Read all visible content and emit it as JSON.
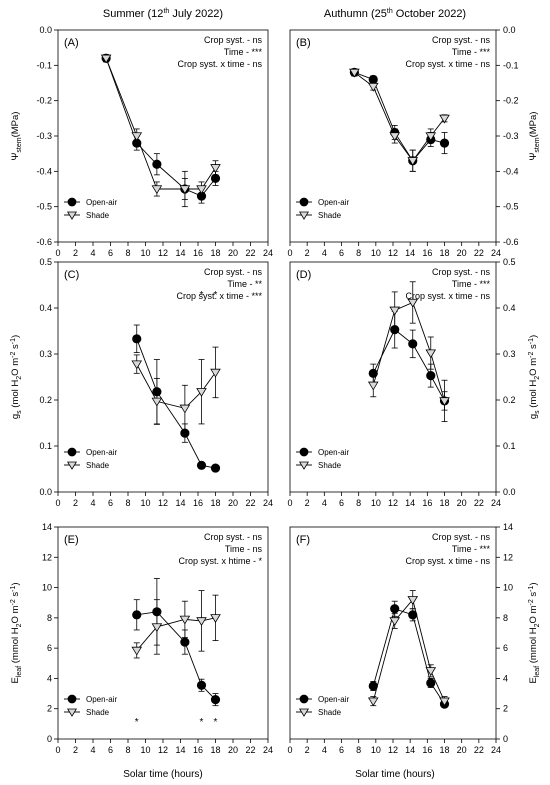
{
  "columns": [
    {
      "title_main": "Summer (12",
      "title_sup": "th",
      "title_end": " July 2022)"
    },
    {
      "title_main": "Authumn (25",
      "title_sup": "th",
      "title_end": " October 2022)"
    }
  ],
  "xlabel": "Solar time (hours)",
  "legend": {
    "open_air": "Open-air",
    "shade": "Shade"
  },
  "colors": {
    "open_air": "#000000",
    "shade": "#d9d9d9",
    "line": "#000000"
  },
  "chart_data": [
    {
      "panel": "(A)",
      "type": "line",
      "ylabel": {
        "main": "Ψ",
        "sub": "stem",
        "unit": "(MPa)"
      },
      "xlim": [
        0,
        24
      ],
      "ylim": [
        -0.6,
        0.0
      ],
      "xticks": [
        "0",
        "2",
        "4",
        "6",
        "8",
        "10",
        "12",
        "14",
        "16",
        "18",
        "20",
        "22",
        "24"
      ],
      "yticks": [
        "0.0",
        "-0.1",
        "-0.2",
        "-0.3",
        "-0.4",
        "-0.5",
        "-0.6"
      ],
      "yaxis_side": "left",
      "stats": [
        "Crop syst. - ns",
        "Time - ***",
        "Crop syst. x time - ns"
      ],
      "series": [
        {
          "name": "Open-air",
          "x": [
            5.5,
            9.0,
            11.3,
            14.5,
            16.4,
            18.0
          ],
          "y": [
            -0.08,
            -0.32,
            -0.38,
            -0.45,
            -0.47,
            -0.42
          ],
          "err": [
            0.01,
            0.02,
            0.03,
            0.05,
            0.02,
            0.02
          ]
        },
        {
          "name": "Shade",
          "x": [
            5.5,
            9.0,
            11.3,
            14.5,
            16.4,
            18.0
          ],
          "y": [
            -0.08,
            -0.3,
            -0.45,
            -0.45,
            -0.45,
            -0.39
          ],
          "err": [
            0.01,
            0.02,
            0.02,
            0.03,
            0.02,
            0.02
          ]
        }
      ],
      "significance": {
        "x": [],
        "y": null
      }
    },
    {
      "panel": "(B)",
      "type": "line",
      "ylabel": {
        "main": "Ψ",
        "sub": "stem",
        "unit": "(MPa)"
      },
      "xlim": [
        0,
        24
      ],
      "ylim": [
        -0.6,
        0.0
      ],
      "xticks": [
        "0",
        "2",
        "4",
        "6",
        "8",
        "10",
        "12",
        "14",
        "16",
        "18",
        "20",
        "22",
        "24"
      ],
      "yticks": [
        "0.0",
        "-0.1",
        "-0.2",
        "-0.3",
        "-0.4",
        "-0.5",
        "-0.6"
      ],
      "yaxis_side": "right",
      "stats": [
        "Crop syst. - ns",
        "Time - ***",
        "Crop syst. x time - ns"
      ],
      "series": [
        {
          "name": "Open-air",
          "x": [
            7.5,
            9.7,
            12.2,
            14.3,
            16.4,
            18.0
          ],
          "y": [
            -0.12,
            -0.14,
            -0.29,
            -0.37,
            -0.31,
            -0.32
          ],
          "err": [
            0.01,
            0.01,
            0.02,
            0.03,
            0.02,
            0.03
          ]
        },
        {
          "name": "Shade",
          "x": [
            7.5,
            9.7,
            12.2,
            14.3,
            16.4,
            18.0
          ],
          "y": [
            -0.12,
            -0.16,
            -0.3,
            -0.37,
            -0.3,
            -0.25
          ],
          "err": [
            0.01,
            0.01,
            0.02,
            0.03,
            0.02,
            0.01
          ]
        }
      ],
      "significance": {
        "x": [],
        "y": null
      }
    },
    {
      "panel": "(C)",
      "type": "line",
      "ylabel": {
        "main": "g",
        "sub": "s",
        "unit_html": "(mol H|2|O m|-2| s|-1|)"
      },
      "xlim": [
        0,
        24
      ],
      "ylim": [
        0,
        0.5
      ],
      "xticks": [
        "0",
        "2",
        "4",
        "6",
        "8",
        "10",
        "12",
        "14",
        "16",
        "18",
        "20",
        "22",
        "24"
      ],
      "yticks": [
        "0.0",
        "0.1",
        "0.2",
        "0.3",
        "0.4",
        "0.5"
      ],
      "yaxis_side": "left",
      "stats": [
        "Crop syst. - ns",
        "Time - **",
        "Crop syst. x  time - ***"
      ],
      "series": [
        {
          "name": "Open-air",
          "x": [
            9.0,
            11.3,
            14.5,
            16.4,
            18.0
          ],
          "y": [
            0.333,
            0.218,
            0.128,
            0.058,
            0.052
          ],
          "err": [
            0.03,
            0.07,
            0.02,
            0.006,
            0.006
          ]
        },
        {
          "name": "Shade",
          "x": [
            9.0,
            11.3,
            14.5,
            16.4,
            18.0
          ],
          "y": [
            0.278,
            0.197,
            0.182,
            0.218,
            0.26
          ],
          "err": [
            0.02,
            0.05,
            0.05,
            0.07,
            0.055
          ]
        }
      ],
      "significance": {
        "x": [
          16.4,
          18.0
        ],
        "y": 0.43
      }
    },
    {
      "panel": "(D)",
      "type": "line",
      "ylabel": {
        "main": "g",
        "sub": "s",
        "unit_html": "(mol H|2|O m|-2| s|-1|)"
      },
      "xlim": [
        0,
        24
      ],
      "ylim": [
        0,
        0.5
      ],
      "xticks": [
        "0",
        "2",
        "4",
        "6",
        "8",
        "10",
        "12",
        "14",
        "16",
        "18",
        "20",
        "22",
        "24"
      ],
      "yticks": [
        "0.0",
        "0.1",
        "0.2",
        "0.3",
        "0.4",
        "0.5"
      ],
      "yaxis_side": "right",
      "stats": [
        "Crop syst. - ns",
        "Time - ***",
        "Crop syst. x time - ns"
      ],
      "series": [
        {
          "name": "Open-air",
          "x": [
            9.7,
            12.2,
            14.3,
            16.4,
            18.0
          ],
          "y": [
            0.258,
            0.353,
            0.322,
            0.253,
            0.198
          ],
          "err": [
            0.02,
            0.04,
            0.03,
            0.025,
            0.02
          ]
        },
        {
          "name": "Shade",
          "x": [
            9.7,
            12.2,
            14.3,
            16.4,
            18.0
          ],
          "y": [
            0.232,
            0.395,
            0.412,
            0.302,
            0.198
          ],
          "err": [
            0.025,
            0.04,
            0.045,
            0.035,
            0.045
          ]
        }
      ],
      "significance": {
        "x": [],
        "y": null
      }
    },
    {
      "panel": "(E)",
      "type": "line",
      "ylabel": {
        "main": "E",
        "sub": "leaf",
        "unit_html": "(mmol H|2|O m|-2| s|-1|)"
      },
      "xlim": [
        0,
        24
      ],
      "ylim": [
        0,
        14
      ],
      "xticks": [
        "0",
        "2",
        "4",
        "6",
        "8",
        "10",
        "12",
        "14",
        "16",
        "18",
        "20",
        "22",
        "24"
      ],
      "yticks": [
        "0",
        "2",
        "4",
        "6",
        "8",
        "10",
        "12",
        "14"
      ],
      "yaxis_side": "left",
      "stats": [
        "Crop syst. - ns",
        "Time - ns",
        "Crop syst. x htime - *"
      ],
      "series": [
        {
          "name": "Open-air",
          "x": [
            9.0,
            11.3,
            14.5,
            16.4,
            18.0
          ],
          "y": [
            8.2,
            8.4,
            6.4,
            3.55,
            2.6
          ],
          "err": [
            1.0,
            2.2,
            0.8,
            0.4,
            0.4
          ]
        },
        {
          "name": "Shade",
          "x": [
            9.0,
            11.3,
            14.5,
            16.4,
            18.0
          ],
          "y": [
            5.85,
            7.4,
            7.9,
            7.8,
            8.0
          ],
          "err": [
            0.5,
            1.8,
            1.2,
            2.0,
            1.5
          ]
        }
      ],
      "significance": {
        "x": [
          9.0,
          16.4,
          18.0
        ],
        "y": 1.2
      }
    },
    {
      "panel": "(F)",
      "type": "line",
      "ylabel": {
        "main": "E",
        "sub": "leaf",
        "unit_html": "(mmol H|2|O m|-2| s|-1|)"
      },
      "xlim": [
        0,
        24
      ],
      "ylim": [
        0,
        14
      ],
      "xticks": [
        "0",
        "2",
        "4",
        "6",
        "8",
        "10",
        "12",
        "14",
        "16",
        "18",
        "20",
        "22",
        "24"
      ],
      "yticks": [
        "0",
        "2",
        "4",
        "6",
        "8",
        "10",
        "12",
        "14"
      ],
      "yaxis_side": "right",
      "stats": [
        "Crop syst. - ns",
        "Time - ***",
        "Crop syst. x time - ns"
      ],
      "series": [
        {
          "name": "Open-air",
          "x": [
            9.7,
            12.2,
            14.3,
            16.4,
            18.0
          ],
          "y": [
            3.5,
            8.6,
            8.2,
            3.7,
            2.3
          ],
          "err": [
            0.3,
            0.5,
            0.4,
            0.3,
            0.2
          ]
        },
        {
          "name": "Shade",
          "x": [
            9.7,
            12.2,
            14.3,
            16.4,
            18.0
          ],
          "y": [
            2.5,
            7.8,
            9.2,
            4.5,
            2.5
          ],
          "err": [
            0.3,
            0.5,
            0.6,
            0.4,
            0.3
          ]
        }
      ],
      "significance": {
        "x": [],
        "y": null
      }
    }
  ]
}
